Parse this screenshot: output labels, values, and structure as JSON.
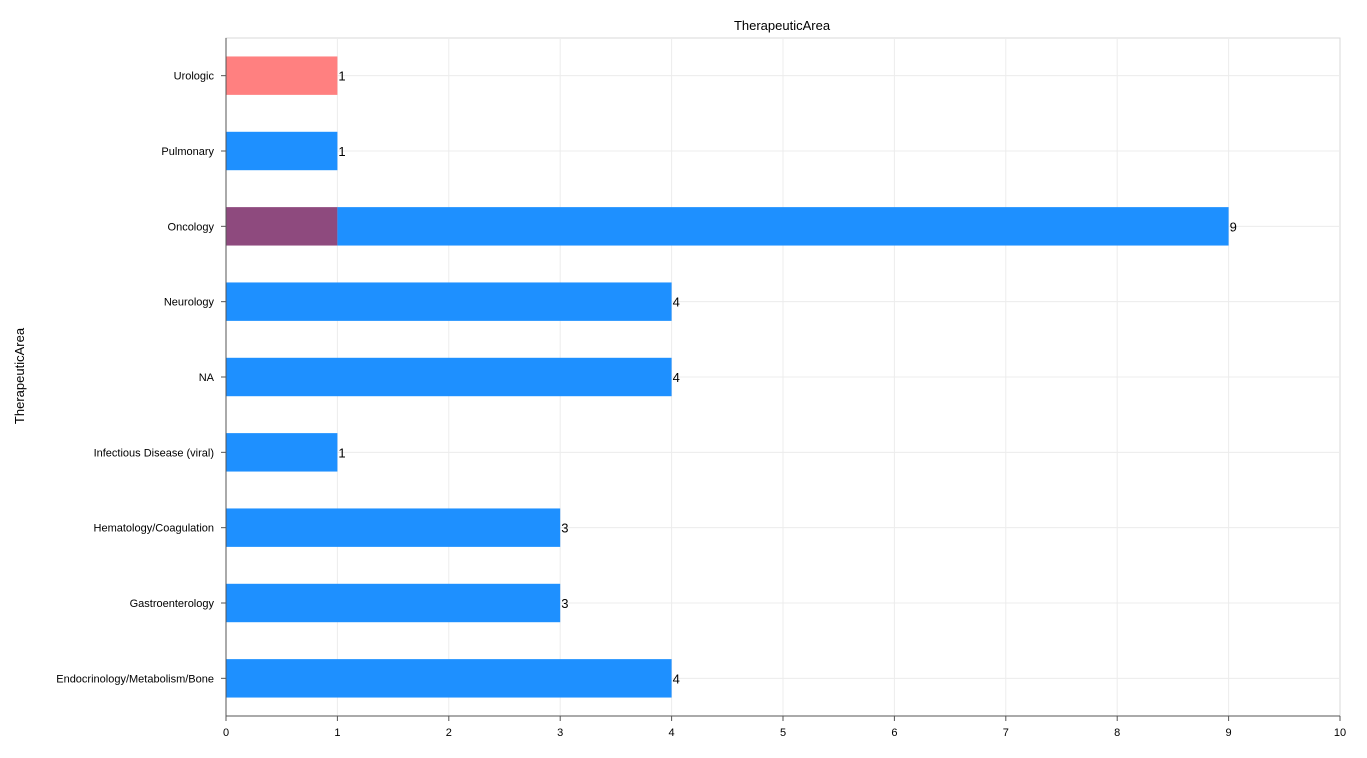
{
  "chart_data": {
    "type": "bar",
    "orientation": "horizontal",
    "title": "TherapeuticArea",
    "xlabel": "",
    "ylabel": "TherapeuticArea",
    "xlim": [
      0,
      10
    ],
    "x_ticks": [
      "0",
      "1",
      "2",
      "3",
      "4",
      "5",
      "6",
      "7",
      "8",
      "9",
      "10"
    ],
    "grid": true,
    "legend": "none",
    "categories": [
      "Endocrinology/Metabolism/Bone",
      "Gastroenterology",
      "Hematology/Coagulation",
      "Infectious Disease (viral)",
      "NA",
      "Neurology",
      "Oncology",
      "Pulmonary",
      "Urologic"
    ],
    "series": [
      {
        "color": "#8e4a7e",
        "values": [
          0,
          0,
          0,
          0,
          0,
          0,
          1,
          0,
          0
        ]
      },
      {
        "color": "#ff8080",
        "values": [
          0,
          0,
          0,
          0,
          0,
          0,
          0,
          0,
          1
        ]
      },
      {
        "color": "#1e90ff",
        "values": [
          4,
          3,
          3,
          1,
          4,
          4,
          8,
          1,
          0
        ]
      }
    ],
    "totals": [
      "4",
      "3",
      "3",
      "1",
      "4",
      "4",
      "9",
      "1",
      "1"
    ]
  }
}
